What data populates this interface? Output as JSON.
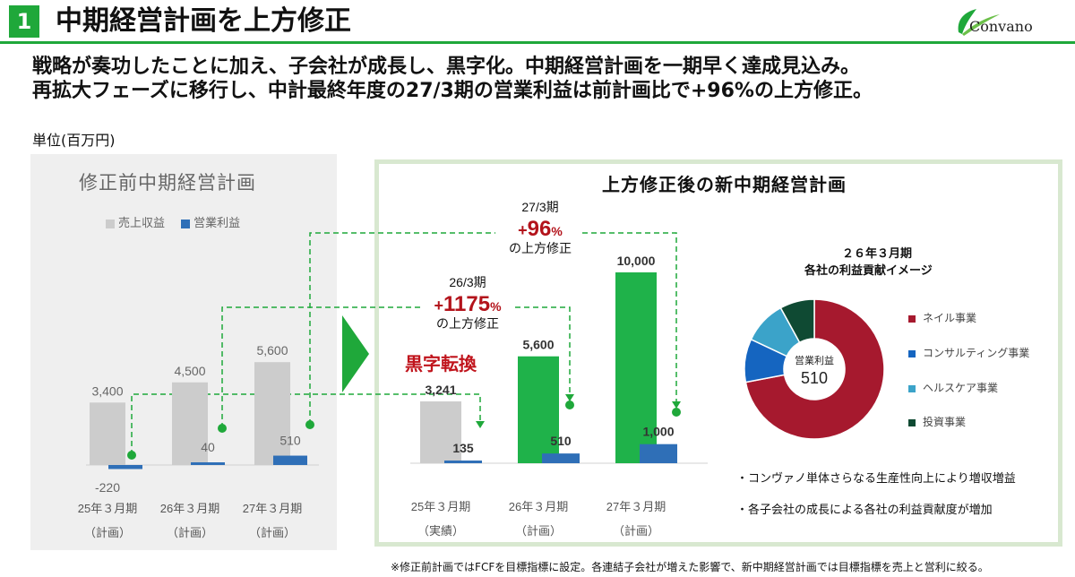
{
  "header": {
    "number": "1",
    "title": "中期経営計画を上方修正",
    "logo_text": "Convano"
  },
  "lead": {
    "line1": "戦略が奏功したことに加え、子会社が成長し、黒字化。中期経営計画を一期早く達成見込み。",
    "line2": "再拡大フェーズに移行し、中計最終年度の27/3期の営業利益は前計画比で+96%の上方修正。"
  },
  "unit": "単位(百万円)",
  "left_panel": {
    "title": "修正前中期経営計画",
    "legend_sales": "売上収益",
    "legend_op": "営業利益"
  },
  "right_panel": {
    "title": "上方修正後の新中期経営計画",
    "kuroji": "黒字転換"
  },
  "callouts": [
    {
      "period": "27/3期",
      "sign": "+",
      "value": "96",
      "pct": "%",
      "suffix": "の上方修正"
    },
    {
      "period": "26/3期",
      "sign": "+",
      "value": "1175",
      "pct": "%",
      "suffix": "の上方修正"
    }
  ],
  "pie": {
    "title1": "２６年３月期",
    "title2": "各社の利益貢献イメージ",
    "center_label": "営業利益",
    "center_value": "510",
    "legend": [
      {
        "label": "ネイル事業",
        "color": "#a6192e"
      },
      {
        "label": "コンサルティング事業",
        "color": "#1565c0"
      },
      {
        "label": "ヘルスケア事業",
        "color": "#3ba3c9"
      },
      {
        "label": "投資事業",
        "color": "#0f4a33"
      }
    ]
  },
  "notes": [
    "・コンヴァノ単体さらなる生産性向上により増収増益",
    "・各子会社の成長による各社の利益貢献度が増加"
  ],
  "footnote": "※修正前計画ではFCFを目標指標に設定。各連結子会社が増えた影響で、新中期経営計画では目標指標を売上と営利に絞る。",
  "chart_data": [
    {
      "type": "bar",
      "title": "修正前中期経営計画",
      "categories": [
        "25年３月期",
        "26年３月期",
        "27年３月期"
      ],
      "category_sublabels": [
        "（計画）",
        "（計画）",
        "（計画）"
      ],
      "series": [
        {
          "name": "売上収益",
          "color": "#cccccc",
          "values": [
            3400,
            4500,
            5600
          ],
          "labels": [
            "3,400",
            "4,500",
            "5,600"
          ]
        },
        {
          "name": "営業利益",
          "color": "#2f6fb7",
          "values": [
            -220,
            40,
            510
          ],
          "labels": [
            "-220",
            "40",
            "510"
          ]
        }
      ]
    },
    {
      "type": "bar",
      "title": "上方修正後の新中期経営計画",
      "categories": [
        "25年３月期",
        "26年３月期",
        "27年３月期"
      ],
      "category_sublabels": [
        "（実績）",
        "（計画）",
        "（計画）"
      ],
      "series": [
        {
          "name": "売上収益",
          "colors": [
            "#cccccc",
            "#1fb24a",
            "#1fb24a"
          ],
          "values": [
            3241,
            5600,
            10000
          ],
          "labels": [
            "3,241",
            "5,600",
            "10,000"
          ]
        },
        {
          "name": "営業利益",
          "color": "#2f6fb7",
          "values": [
            135,
            510,
            1000
          ],
          "labels": [
            "135",
            "510",
            "1,000"
          ]
        }
      ]
    },
    {
      "type": "pie",
      "title": "２６年３月期 各社の利益貢献イメージ",
      "center_label": "営業利益",
      "center_value": 510,
      "labels": [
        "ネイル事業",
        "コンサルティング事業",
        "ヘルスケア事業",
        "投資事業"
      ],
      "values": [
        72,
        10,
        10,
        8
      ],
      "colors": [
        "#a6192e",
        "#1565c0",
        "#3ba3c9",
        "#0f4a33"
      ]
    }
  ]
}
